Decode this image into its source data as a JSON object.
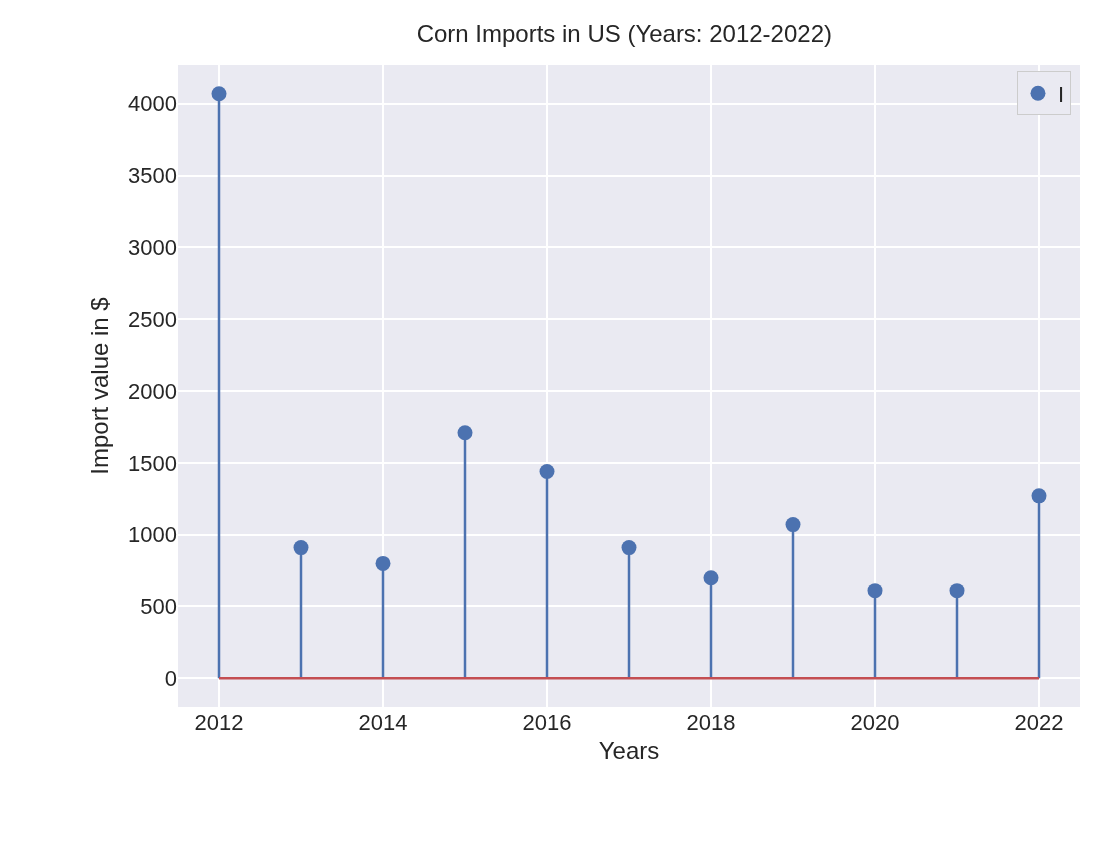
{
  "chart_data": {
    "type": "lollipop",
    "title": "Corn Imports in US (Years: 2012-2022)",
    "xlabel": "Years",
    "ylabel": "Import value in $",
    "x": [
      2012,
      2013,
      2014,
      2015,
      2016,
      2017,
      2018,
      2019,
      2020,
      2021,
      2022
    ],
    "series": [
      {
        "name": "I",
        "color": "#4c72b0",
        "values": [
          4070,
          910,
          800,
          1710,
          1440,
          910,
          700,
          1070,
          610,
          610,
          1270
        ]
      }
    ],
    "xlim": [
      2011.5,
      2022.5
    ],
    "xticks": [
      2012,
      2014,
      2016,
      2018,
      2020,
      2022
    ],
    "ylim": [
      -200,
      4270
    ],
    "yticks": [
      0,
      500,
      1000,
      1500,
      2000,
      2500,
      3000,
      3500,
      4000
    ],
    "ref_lines": [
      {
        "axis": "y",
        "value": 0,
        "color": "#c44e52"
      }
    ],
    "grid": true,
    "legend": "top right",
    "marker": "circle"
  }
}
